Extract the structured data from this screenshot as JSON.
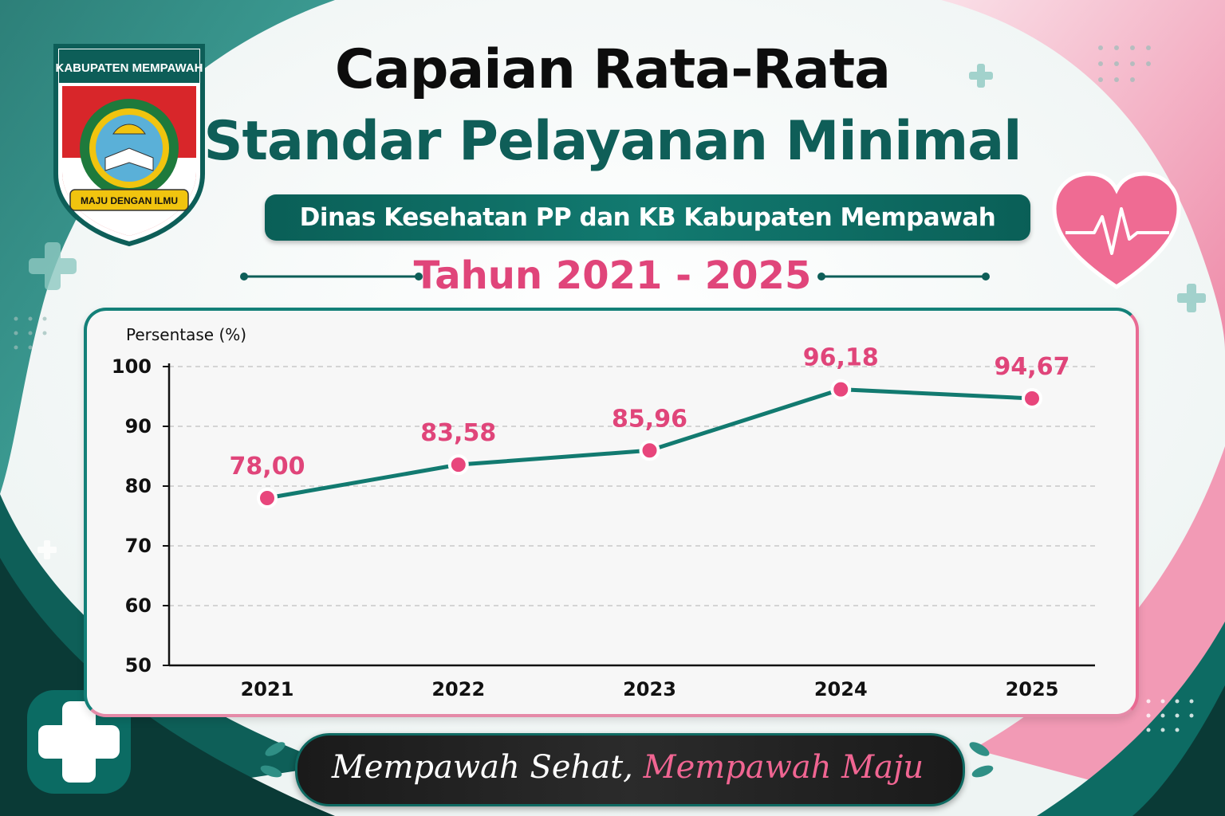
{
  "header": {
    "title_line1": "Capaian Rata-Rata",
    "title_line2": "Standar Pelayanan Minimal",
    "subtitle": "Dinas Kesehatan PP dan KB Kabupaten Mempawah",
    "years": "Tahun 2021 - 2025"
  },
  "logo": {
    "top_text": "KABUPATEN MEMPAWAH",
    "ribbon_text": "MAJU DENGAN ILMU"
  },
  "footer": {
    "slogan_part1": "Mempawah Sehat, ",
    "slogan_part2": "Mempawah Maju"
  },
  "colors": {
    "teal": "#127a70",
    "pink": "#e0457a",
    "dark": "#1a1a1a"
  },
  "chart_data": {
    "type": "line",
    "categories": [
      "2021",
      "2022",
      "2023",
      "2024",
      "2025"
    ],
    "values": [
      78.0,
      83.58,
      85.96,
      96.18,
      94.67
    ],
    "data_labels": [
      "78,00",
      "83,58",
      "85,96",
      "96,18",
      "94,67"
    ],
    "ylabel": "Persentase (%)",
    "ylim": [
      50,
      100
    ],
    "yticks": [
      100,
      90,
      80,
      70,
      60,
      50
    ],
    "grid": true,
    "line_color": "#127a70",
    "marker_color": "#e8467c",
    "label_color": "#e0457a"
  }
}
